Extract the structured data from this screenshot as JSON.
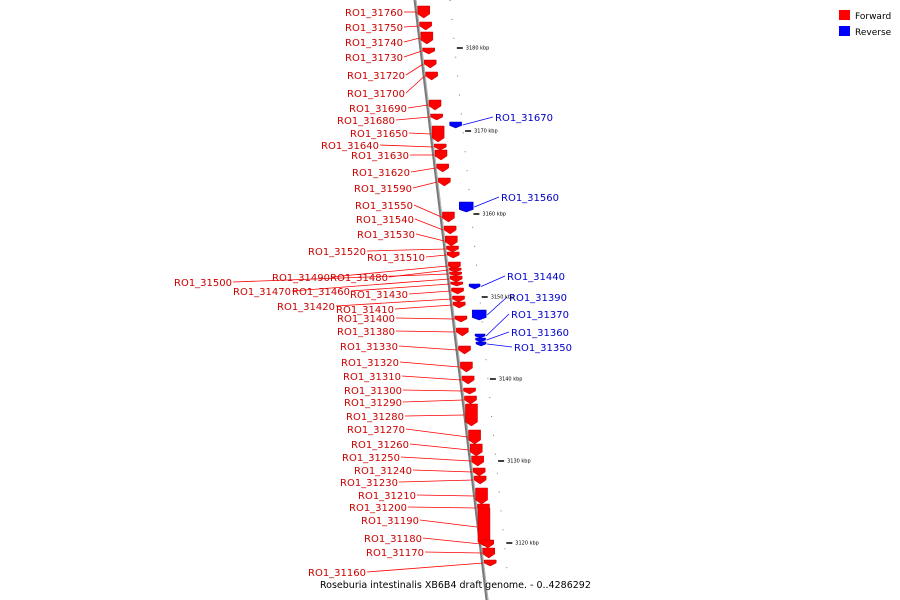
{
  "caption": "Roseburia intestinalis XB6B4 draft genome. - 0..4286292",
  "legend": {
    "forward": {
      "label": "Forward",
      "color": "#ff0000"
    },
    "reverse": {
      "label": "Reverse",
      "color": "#0000ff"
    }
  },
  "colors": {
    "forward": "#ff0000",
    "forward_dark": "#c00000",
    "reverse": "#0000ff",
    "reverse_dark": "#0000b0",
    "backbone": "#808080"
  },
  "ticks": [
    "3180 kbp",
    "3170 kbp",
    "3160 kbp",
    "3150 kbp",
    "3140 kbp",
    "3130 kbp",
    "3120 kbp"
  ],
  "forward_genes": [
    "RO1_31760",
    "RO1_31750",
    "RO1_31740",
    "RO1_31730",
    "RO1_31720",
    "RO1_31700",
    "RO1_31690",
    "RO1_31680",
    "RO1_31650",
    "RO1_31640",
    "RO1_31630",
    "RO1_31620",
    "RO1_31590",
    "RO1_31550",
    "RO1_31540",
    "RO1_31530",
    "RO1_31520",
    "RO1_31510",
    "RO1_31490",
    "RO1_31480",
    "RO1_31500",
    "RO1_31470",
    "RO1_31460",
    "RO1_31430",
    "RO1_31420",
    "RO1_31410",
    "RO1_31400",
    "RO1_31380",
    "RO1_31330",
    "RO1_31320",
    "RO1_31310",
    "RO1_31300",
    "RO1_31290",
    "RO1_31280",
    "RO1_31270",
    "RO1_31260",
    "RO1_31250",
    "RO1_31240",
    "RO1_31230",
    "RO1_31210",
    "RO1_31200",
    "RO1_31190",
    "RO1_31180",
    "RO1_31170",
    "RO1_31160"
  ],
  "reverse_genes": [
    "RO1_31670",
    "RO1_31560",
    "RO1_31440",
    "RO1_31390",
    "RO1_31370",
    "RO1_31360",
    "RO1_31350"
  ]
}
